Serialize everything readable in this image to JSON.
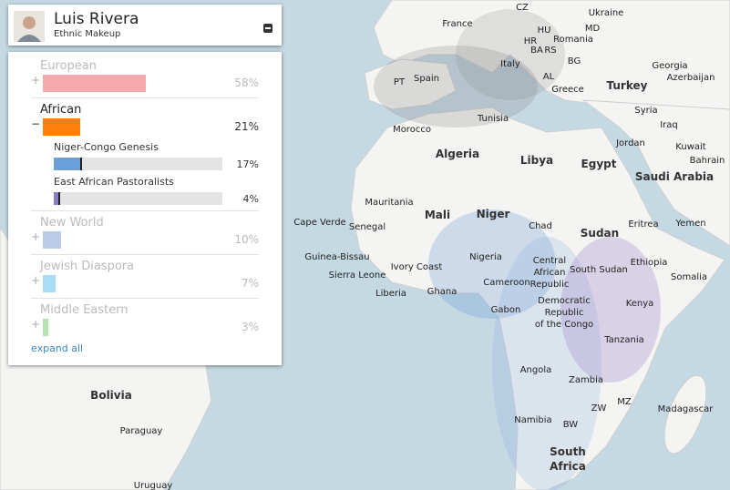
{
  "header": {
    "title": "Luis Rivera",
    "subtitle": "Ethnic Makeup"
  },
  "ancestry": {
    "groups": [
      {
        "name": "European",
        "value": 58,
        "value_label": "58%",
        "color": "#f4a9ad",
        "expanded": false
      },
      {
        "name": "African",
        "value": 21,
        "value_label": "21%",
        "color": "#ff7f0e",
        "expanded": true,
        "subgroups": [
          {
            "name": "Niger-Congo Genesis",
            "value": 17,
            "value_label": "17%",
            "color": "#6a9fd8"
          },
          {
            "name": "East African Pastoralists",
            "value": 4,
            "value_label": "4%",
            "color": "#8a7cc7"
          }
        ]
      },
      {
        "name": "New World",
        "value": 10,
        "value_label": "10%",
        "color": "#b9cbe6",
        "expanded": false
      },
      {
        "name": "Jewish Diaspora",
        "value": 7,
        "value_label": "7%",
        "color": "#a9dcf5",
        "expanded": false
      },
      {
        "name": "Middle Eastern",
        "value": 3,
        "value_label": "3%",
        "color": "#b5e2b0",
        "expanded": false
      }
    ],
    "expand_all": "expand all"
  },
  "map": {
    "labels": [
      "France",
      "CZ",
      "Ukraine",
      "HR",
      "HU",
      "Romania",
      "MD",
      "BA",
      "RS",
      "BG",
      "Italy",
      "PT",
      "Spain",
      "AL",
      "Greece",
      "Turkey",
      "Georgia",
      "Azerbaijan",
      "Syria",
      "Iraq",
      "Morocco",
      "Tunisia",
      "Jordan",
      "Kuwait",
      "Bahrain",
      "Algeria",
      "Libya",
      "Egypt",
      "Saudi Arabia",
      "Mauritania",
      "Mali",
      "Niger",
      "Chad",
      "Sudan",
      "Eritrea",
      "Yemen",
      "Cape Verde",
      "Senegal",
      "Guinea-Bissau",
      "Ivory Coast",
      "Nigeria",
      "Central",
      "African",
      "Republic",
      "South Sudan",
      "Ethiopia",
      "Somalia",
      "Sierra Leone",
      "Liberia",
      "Ghana",
      "Cameroon",
      "Gabon",
      "Democratic",
      "Republic",
      "of the Congo",
      "Kenya",
      "Tanzania",
      "Angola",
      "Zambia",
      "MZ",
      "Madagascar",
      "Namibia",
      "BW",
      "ZW",
      "South",
      "Africa",
      "Bolivia",
      "Paraguay",
      "Uruguay"
    ]
  }
}
